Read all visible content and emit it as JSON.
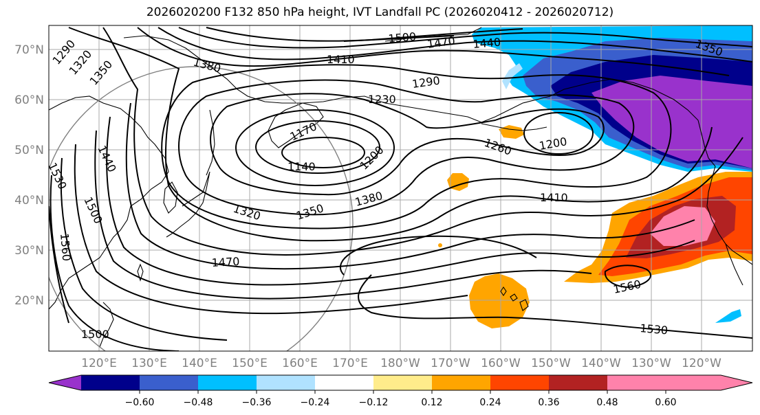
{
  "title": "2026020200 F132 850 hPa height, IVT Landfall PC (2026020412 - 2026020712)",
  "lat_labels": [
    "70°N",
    "60°N",
    "50°N",
    "40°N",
    "30°N",
    "20°N"
  ],
  "lon_labels": [
    "120°E",
    "130°E",
    "140°E",
    "150°E",
    "160°E",
    "170°E",
    "180°W",
    "170°W",
    "160°W",
    "150°W",
    "140°W",
    "130°W",
    "120°W"
  ],
  "contour_labels": [
    "1290",
    "1320",
    "1350",
    "1380",
    "1410",
    "1440",
    "1470",
    "1500",
    "1230",
    "1290",
    "1170",
    "1140",
    "1200",
    "1260",
    "1200",
    "1320",
    "1350",
    "1380",
    "1410",
    "1440",
    "1530",
    "1500",
    "1560",
    "1470",
    "1500",
    "1560",
    "1530",
    "1350"
  ],
  "colorbar": {
    "ticks": [
      "−0.60",
      "−0.48",
      "−0.36",
      "−0.24",
      "−0.12",
      "0.12",
      "0.24",
      "0.36",
      "0.48",
      "0.60"
    ],
    "colors": [
      "#9932cc",
      "#00008b",
      "#3a5fcd",
      "#00bfff",
      "#b0e2ff",
      "#ffffff",
      "#ffec8b",
      "#ffa500",
      "#ff4500",
      "#b22222",
      "#ff82ab"
    ]
  }
}
